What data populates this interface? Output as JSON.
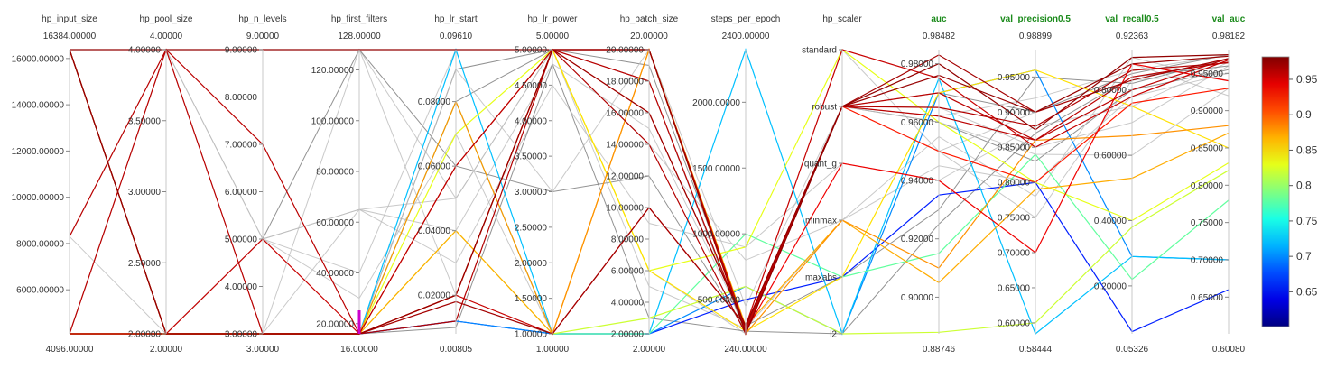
{
  "chart_data": {
    "type": "parallel_coordinates",
    "color_by": "val_auc",
    "colorscale": "jet",
    "color_range": [
      0.6008,
      0.98182
    ],
    "colorbar_ticks": [
      "0.95",
      "0.9",
      "0.85",
      "0.8",
      "0.75",
      "0.7",
      "0.65"
    ],
    "colorbar_tick_values": [
      0.95,
      0.9,
      0.85,
      0.8,
      0.75,
      0.7,
      0.65
    ],
    "axes": [
      {
        "name": "hp_input_size",
        "metric": false,
        "top": "16384.00000",
        "bottom": "4096.00000",
        "min": 4096,
        "max": 16384,
        "ticks": [
          {
            "v": 16000,
            "label": "16000.00000"
          },
          {
            "v": 14000,
            "label": "14000.00000"
          },
          {
            "v": 12000,
            "label": "12000.00000"
          },
          {
            "v": 10000,
            "label": "10000.00000"
          },
          {
            "v": 8000,
            "label": "8000.00000"
          },
          {
            "v": 6000,
            "label": "6000.00000"
          }
        ]
      },
      {
        "name": "hp_pool_size",
        "metric": false,
        "top": "4.00000",
        "bottom": "2.00000",
        "min": 2,
        "max": 4,
        "ticks": [
          {
            "v": 4,
            "label": "4.00000"
          },
          {
            "v": 3.5,
            "label": "3.50000"
          },
          {
            "v": 3,
            "label": "3.00000"
          },
          {
            "v": 2.5,
            "label": "2.50000"
          },
          {
            "v": 2,
            "label": "2.00000"
          }
        ]
      },
      {
        "name": "hp_n_levels",
        "metric": false,
        "top": "9.00000",
        "bottom": "3.00000",
        "min": 3,
        "max": 9,
        "ticks": [
          {
            "v": 9,
            "label": "9.00000"
          },
          {
            "v": 8,
            "label": "8.00000"
          },
          {
            "v": 7,
            "label": "7.00000"
          },
          {
            "v": 6,
            "label": "6.00000"
          },
          {
            "v": 5,
            "label": "5.00000"
          },
          {
            "v": 4,
            "label": "4.00000"
          },
          {
            "v": 3,
            "label": "3.00000"
          }
        ]
      },
      {
        "name": "hp_first_filters",
        "metric": false,
        "top": "128.00000",
        "bottom": "16.00000",
        "min": 16,
        "max": 128,
        "ticks": [
          {
            "v": 120,
            "label": "120.00000"
          },
          {
            "v": 100,
            "label": "100.00000"
          },
          {
            "v": 80,
            "label": "80.00000"
          },
          {
            "v": 60,
            "label": "60.00000"
          },
          {
            "v": 40,
            "label": "40.00000"
          },
          {
            "v": 20,
            "label": "20.00000"
          }
        ]
      },
      {
        "name": "hp_lr_start",
        "metric": false,
        "top": "0.09610",
        "bottom": "0.00805",
        "min": 0.00805,
        "max": 0.0961,
        "ticks": [
          {
            "v": 0.08,
            "label": "0.08000"
          },
          {
            "v": 0.06,
            "label": "0.06000"
          },
          {
            "v": 0.04,
            "label": "0.04000"
          },
          {
            "v": 0.02,
            "label": "0.02000"
          }
        ]
      },
      {
        "name": "hp_lr_power",
        "metric": false,
        "top": "5.00000",
        "bottom": "1.00000",
        "min": 1,
        "max": 5,
        "ticks": [
          {
            "v": 5,
            "label": "5.00000"
          },
          {
            "v": 4.5,
            "label": "4.50000"
          },
          {
            "v": 4,
            "label": "4.00000"
          },
          {
            "v": 3.5,
            "label": "3.50000"
          },
          {
            "v": 3,
            "label": "3.00000"
          },
          {
            "v": 2.5,
            "label": "2.50000"
          },
          {
            "v": 2,
            "label": "2.00000"
          },
          {
            "v": 1.5,
            "label": "1.50000"
          },
          {
            "v": 1,
            "label": "1.00000"
          }
        ]
      },
      {
        "name": "hp_batch_size",
        "metric": false,
        "top": "20.00000",
        "bottom": "2.00000",
        "min": 2,
        "max": 20,
        "ticks": [
          {
            "v": 20,
            "label": "20.00000"
          },
          {
            "v": 18,
            "label": "18.00000"
          },
          {
            "v": 16,
            "label": "16.00000"
          },
          {
            "v": 14,
            "label": "14.00000"
          },
          {
            "v": 12,
            "label": "12.00000"
          },
          {
            "v": 10,
            "label": "10.00000"
          },
          {
            "v": 8,
            "label": "8.00000"
          },
          {
            "v": 6,
            "label": "6.00000"
          },
          {
            "v": 4,
            "label": "4.00000"
          },
          {
            "v": 2,
            "label": "2.00000"
          }
        ]
      },
      {
        "name": "steps_per_epoch",
        "metric": false,
        "top": "2400.00000",
        "bottom": "240.00000",
        "min": 240,
        "max": 2400,
        "ticks": [
          {
            "v": 2000,
            "label": "2000.00000"
          },
          {
            "v": 1500,
            "label": "1500.00000"
          },
          {
            "v": 1000,
            "label": "1000.00000"
          },
          {
            "v": 500,
            "label": "500.00000"
          }
        ]
      },
      {
        "name": "hp_scaler",
        "metric": false,
        "top": "",
        "bottom": "",
        "min": 0,
        "max": 5,
        "categorical": true,
        "ticks": [
          {
            "v": 5,
            "label": "standard"
          },
          {
            "v": 4,
            "label": "robust"
          },
          {
            "v": 3,
            "label": "quant_g"
          },
          {
            "v": 2,
            "label": "minmax"
          },
          {
            "v": 1,
            "label": "maxabs"
          },
          {
            "v": 0,
            "label": "l2"
          }
        ]
      },
      {
        "name": "auc",
        "metric": true,
        "top": "0.98482",
        "bottom": "0.88746",
        "min": 0.88746,
        "max": 0.98482,
        "ticks": [
          {
            "v": 0.98,
            "label": "0.98000"
          },
          {
            "v": 0.96,
            "label": "0.96000"
          },
          {
            "v": 0.94,
            "label": "0.94000"
          },
          {
            "v": 0.92,
            "label": "0.92000"
          },
          {
            "v": 0.9,
            "label": "0.90000"
          }
        ]
      },
      {
        "name": "val_precision0.5",
        "metric": true,
        "top": "0.98899",
        "bottom": "0.58444",
        "min": 0.58444,
        "max": 0.98899,
        "ticks": [
          {
            "v": 0.95,
            "label": "0.95000"
          },
          {
            "v": 0.9,
            "label": "0.90000"
          },
          {
            "v": 0.85,
            "label": "0.85000"
          },
          {
            "v": 0.8,
            "label": "0.80000"
          },
          {
            "v": 0.75,
            "label": "0.75000"
          },
          {
            "v": 0.7,
            "label": "0.70000"
          },
          {
            "v": 0.65,
            "label": "0.65000"
          },
          {
            "v": 0.6,
            "label": "0.60000"
          }
        ]
      },
      {
        "name": "val_recall0.5",
        "metric": true,
        "top": "0.92363",
        "bottom": "0.05326",
        "min": 0.05326,
        "max": 0.92363,
        "ticks": [
          {
            "v": 0.8,
            "label": "0.80000"
          },
          {
            "v": 0.6,
            "label": "0.60000"
          },
          {
            "v": 0.4,
            "label": "0.40000"
          },
          {
            "v": 0.2,
            "label": "0.20000"
          }
        ]
      },
      {
        "name": "val_auc",
        "metric": true,
        "top": "0.98182",
        "bottom": "0.60080",
        "min": 0.6008,
        "max": 0.98182,
        "ticks": [
          {
            "v": 0.95,
            "label": "0.95000"
          },
          {
            "v": 0.9,
            "label": "0.90000"
          },
          {
            "v": 0.85,
            "label": "0.85000"
          },
          {
            "v": 0.8,
            "label": "0.80000"
          },
          {
            "v": 0.75,
            "label": "0.75000"
          },
          {
            "v": 0.7,
            "label": "0.70000"
          },
          {
            "v": 0.65,
            "label": "0.65000"
          }
        ]
      }
    ],
    "trials": [
      {
        "values": [
          16384,
          4,
          9,
          128,
          0.0961,
          5,
          20,
          240,
          4,
          0.98,
          0.875,
          0.9,
          0.975
        ],
        "color_value": 0.975
      },
      {
        "values": [
          16384,
          2,
          3,
          16,
          0.02,
          5,
          16,
          300,
          4,
          0.976,
          0.9,
          0.88,
          0.973
        ],
        "color_value": 0.973
      },
      {
        "values": [
          4096,
          4,
          7,
          16,
          0.06,
          5,
          18,
          260,
          4,
          0.97,
          0.86,
          0.84,
          0.965
        ],
        "color_value": 0.96
      },
      {
        "values": [
          16384,
          2,
          3,
          16,
          0.018,
          1,
          10,
          300,
          4,
          0.983,
          0.9,
          0.83,
          0.97
        ],
        "color_value": 0.968
      },
      {
        "values": [
          4096,
          2,
          3,
          16,
          0.012,
          5,
          14,
          240,
          4,
          0.965,
          0.88,
          0.86,
          0.964
        ],
        "color_value": 0.963
      },
      {
        "values": [
          8300,
          4,
          3,
          16,
          0.02,
          5,
          20,
          280,
          4,
          0.962,
          0.86,
          0.8,
          0.97
        ],
        "color_value": 0.96
      },
      {
        "values": [
          16384,
          2,
          5,
          16,
          0.02,
          1,
          10,
          300,
          5,
          0.975,
          0.85,
          0.78,
          0.968
        ],
        "color_value": 0.955
      },
      {
        "values": [
          4096,
          2,
          3,
          16,
          0.02,
          5,
          20,
          260,
          3,
          0.94,
          0.7,
          0.88,
          0.94
        ],
        "color_value": 0.94
      },
      {
        "values": [
          4096,
          2,
          3,
          16,
          0.06,
          5,
          16,
          300,
          4,
          0.95,
          0.8,
          0.76,
          0.93
        ],
        "color_value": 0.925
      },
      {
        "values": [
          16384,
          2,
          3,
          16,
          0.08,
          1,
          20,
          240,
          2,
          0.91,
          0.86,
          0.66,
          0.88
        ],
        "color_value": 0.88
      },
      {
        "values": [
          4096,
          2,
          3,
          16,
          0.04,
          1,
          20,
          300,
          2,
          0.905,
          0.79,
          0.53,
          0.87
        ],
        "color_value": 0.87
      },
      {
        "values": [
          4096,
          2,
          3,
          16,
          0.02,
          5,
          6,
          260,
          1,
          0.97,
          0.96,
          0.75,
          0.85
        ],
        "color_value": 0.85
      },
      {
        "values": [
          4096,
          2,
          3,
          16,
          0.07,
          5,
          6,
          900,
          5,
          0.96,
          0.8,
          0.4,
          0.83
        ],
        "color_value": 0.83
      },
      {
        "values": [
          4096,
          2,
          3,
          16,
          0.04,
          1,
          3,
          600,
          0,
          0.888,
          0.6,
          0.38,
          0.82
        ],
        "color_value": 0.82
      },
      {
        "values": [
          16384,
          2,
          3,
          16,
          0.08,
          1,
          2,
          1000,
          1,
          0.915,
          0.84,
          0.22,
          0.78
        ],
        "color_value": 0.78
      },
      {
        "values": [
          4096,
          2,
          3,
          16,
          0.0961,
          1,
          2,
          2400,
          0,
          0.975,
          0.5845,
          0.29,
          0.7
        ],
        "color_value": 0.72
      },
      {
        "values": [
          4096,
          2,
          3,
          16,
          0.012,
          1,
          2,
          600,
          0,
          0.97,
          0.96,
          0.29,
          0.7
        ],
        "color_value": 0.7
      },
      {
        "values": [
          4096,
          2,
          3,
          16,
          0.012,
          1,
          2,
          500,
          1,
          0.935,
          0.8,
          0.06,
          0.66
        ],
        "color_value": 0.66
      }
    ],
    "background_trials": [
      [
        16384,
        2,
        3,
        16,
        0.08,
        5,
        18,
        240,
        4,
        0.97,
        0.9,
        0.85,
        0.975
      ],
      [
        8300,
        4,
        9,
        128,
        0.05,
        5,
        20,
        250,
        4,
        0.965,
        0.85,
        0.7,
        0.96
      ],
      [
        4096,
        4,
        5,
        65,
        0.04,
        4.8,
        15,
        300,
        5,
        0.95,
        0.75,
        0.83,
        0.95
      ],
      [
        16384,
        2,
        5,
        128,
        0.06,
        3,
        12,
        260,
        4,
        0.96,
        0.83,
        0.8,
        0.955
      ],
      [
        4096,
        4,
        5,
        40,
        0.0961,
        5,
        5,
        280,
        2,
        0.955,
        0.78,
        0.9,
        0.94
      ],
      [
        16384,
        2,
        3,
        65,
        0.03,
        4.5,
        9,
        900,
        3,
        0.94,
        0.88,
        0.75,
        0.965
      ],
      [
        4096,
        2,
        3,
        16,
        0.09,
        5,
        19,
        300,
        1,
        0.93,
        0.95,
        0.82,
        0.97
      ],
      [
        4096,
        2,
        5,
        30,
        0.07,
        1,
        20,
        240,
        4,
        0.96,
        0.84,
        0.6,
        0.93
      ],
      [
        16384,
        4,
        3,
        128,
        0.02,
        5,
        6,
        240,
        4,
        0.95,
        0.9,
        0.88,
        0.92
      ],
      [
        4096,
        2,
        3,
        16,
        0.01,
        4.8,
        3,
        260,
        0,
        0.925,
        0.87,
        0.84,
        0.96
      ],
      [
        8300,
        2,
        5,
        65,
        0.05,
        5,
        14,
        800,
        2,
        0.945,
        0.8,
        0.78,
        0.95
      ],
      [
        16384,
        2,
        3,
        16,
        0.09,
        3,
        20,
        450,
        4,
        0.962,
        0.92,
        0.86,
        0.975
      ]
    ],
    "highlight_mark": {
      "axis": "hp_first_filters",
      "value": 16,
      "color": "#cc00cc"
    }
  }
}
